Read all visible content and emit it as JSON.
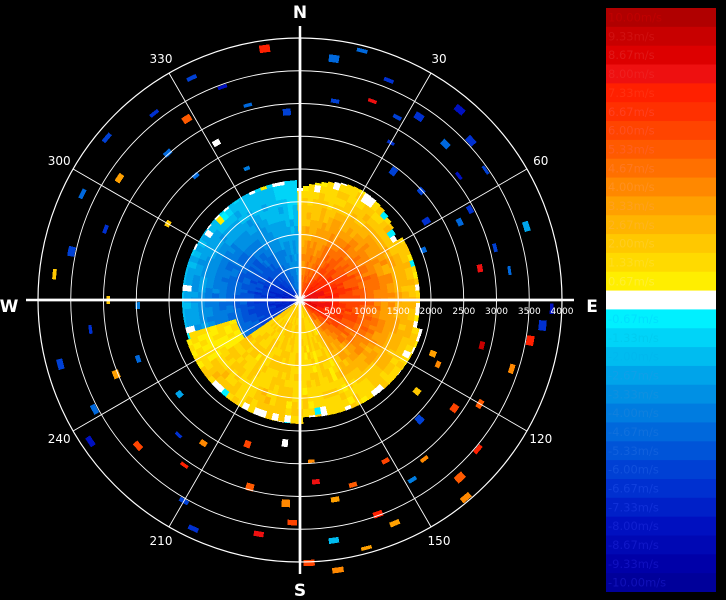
{
  "polar": {
    "cardinals": {
      "n": "N",
      "e": "E",
      "s": "S",
      "w": "W"
    },
    "azimuths": [
      {
        "deg": 30,
        "label": "30"
      },
      {
        "deg": 60,
        "label": "60"
      },
      {
        "deg": 120,
        "label": "120"
      },
      {
        "deg": 150,
        "label": "150"
      },
      {
        "deg": 210,
        "label": "210"
      },
      {
        "deg": 240,
        "label": "240"
      },
      {
        "deg": 300,
        "label": "300"
      },
      {
        "deg": 330,
        "label": "330"
      }
    ],
    "range_labels": [
      "500",
      "1000",
      "1500",
      "2000",
      "2500",
      "3000",
      "3500",
      "4000"
    ]
  },
  "legend": {
    "unit": "m/s",
    "entries": [
      {
        "label": "10.00m/s",
        "color": "#b00000",
        "text_color": "#c00000"
      },
      {
        "label": "9.33m/s",
        "color": "#c80000",
        "text_color": "#d01010"
      },
      {
        "label": "8.67m/s",
        "color": "#dd0000",
        "text_color": "#e01818"
      },
      {
        "label": "8.00m/s",
        "color": "#ee1010",
        "text_color": "#ee2020"
      },
      {
        "label": "7.33m/s",
        "color": "#ff2000",
        "text_color": "#ff3010"
      },
      {
        "label": "6.67m/s",
        "color": "#ff3000",
        "text_color": "#ff4020"
      },
      {
        "label": "6.00m/s",
        "color": "#ff4400",
        "text_color": "#ff5020"
      },
      {
        "label": "5.33m/s",
        "color": "#ff5a00",
        "text_color": "#ff6020"
      },
      {
        "label": "4.67m/s",
        "color": "#ff7000",
        "text_color": "#ff7820"
      },
      {
        "label": "4.00m/s",
        "color": "#ff8800",
        "text_color": "#ff9020"
      },
      {
        "label": "3.33m/s",
        "color": "#ffa000",
        "text_color": "#ffa020"
      },
      {
        "label": "2.67m/s",
        "color": "#ffb400",
        "text_color": "#ffb420"
      },
      {
        "label": "2.00m/s",
        "color": "#ffc800",
        "text_color": "#ffcc20"
      },
      {
        "label": "1.33m/s",
        "color": "#ffda00",
        "text_color": "#ffdd20"
      },
      {
        "label": "0.67m/s",
        "color": "#ffee00",
        "text_color": "#ffee30"
      },
      {
        "label": "0.00m/s",
        "color": "#ffffff",
        "text_color": "#ffffff"
      },
      {
        "label": "-0.67m/s",
        "color": "#00f0ff",
        "text_color": "#00e0ff"
      },
      {
        "label": "-1.33m/s",
        "color": "#00d4f8",
        "text_color": "#00ccf0"
      },
      {
        "label": "-2.00m/s",
        "color": "#00bcf0",
        "text_color": "#00b8ee"
      },
      {
        "label": "-2.67m/s",
        "color": "#00a4ea",
        "text_color": "#10a0e8"
      },
      {
        "label": "-3.33m/s",
        "color": "#0090e4",
        "text_color": "#1090e0"
      },
      {
        "label": "-4.00m/s",
        "color": "#007ce0",
        "text_color": "#1080dd"
      },
      {
        "label": "-4.67m/s",
        "color": "#0068dc",
        "text_color": "#1070dd"
      },
      {
        "label": "-5.33m/s",
        "color": "#0054d8",
        "text_color": "#1060dd"
      },
      {
        "label": "-6.00m/s",
        "color": "#0040d4",
        "text_color": "#1050dd"
      },
      {
        "label": "-6.67m/s",
        "color": "#0030d0",
        "text_color": "#1040dd"
      },
      {
        "label": "-7.33m/s",
        "color": "#0020c8",
        "text_color": "#1030d8"
      },
      {
        "label": "-8.00m/s",
        "color": "#0010c0",
        "text_color": "#1020d0"
      },
      {
        "label": "-8.67m/s",
        "color": "#0008b4",
        "text_color": "#1018c8"
      },
      {
        "label": "-9.33m/s",
        "color": "#0000a8",
        "text_color": "#1010c0"
      },
      {
        "label": "-10.00m/s",
        "color": "#00009a",
        "text_color": "#1010b8"
      }
    ]
  }
}
